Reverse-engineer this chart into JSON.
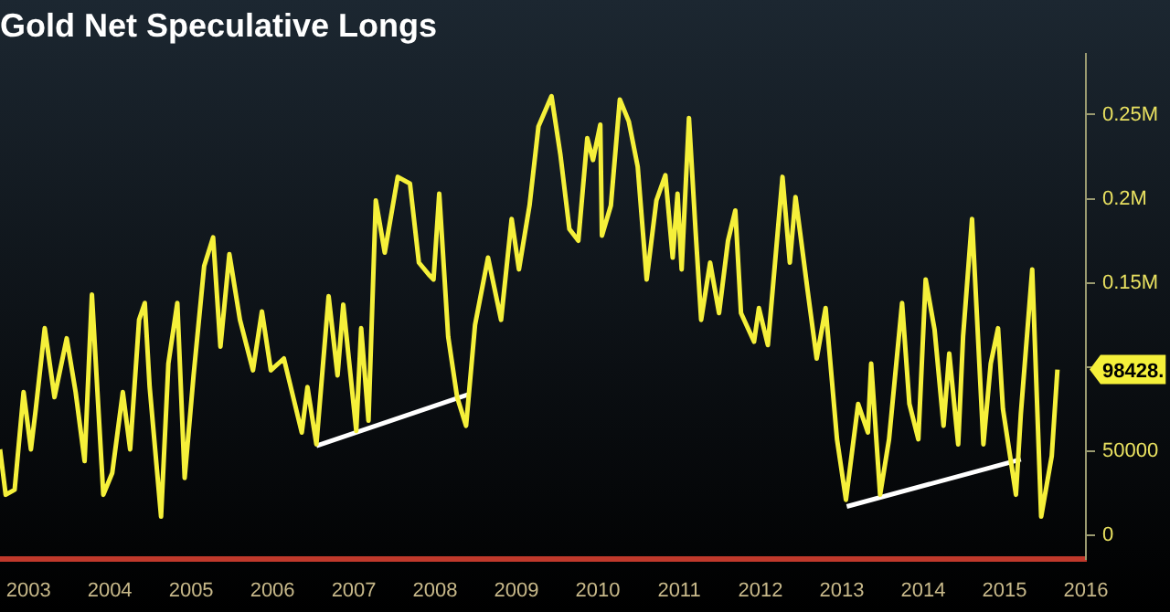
{
  "chart_data": {
    "type": "line",
    "title": "Gold Net Speculative Longs",
    "xlim": [
      2003.15,
      2016.5
    ],
    "ylim": [
      -14000,
      286000
    ],
    "xticks": [
      {
        "value": 2003.5,
        "label": "2003"
      },
      {
        "value": 2004.5,
        "label": "2004"
      },
      {
        "value": 2005.5,
        "label": "2005"
      },
      {
        "value": 2006.5,
        "label": "2006"
      },
      {
        "value": 2007.5,
        "label": "2007"
      },
      {
        "value": 2008.5,
        "label": "2008"
      },
      {
        "value": 2009.5,
        "label": "2009"
      },
      {
        "value": 2010.5,
        "label": "2010"
      },
      {
        "value": 2011.5,
        "label": "2011"
      },
      {
        "value": 2012.5,
        "label": "2012"
      },
      {
        "value": 2013.5,
        "label": "2013"
      },
      {
        "value": 2014.5,
        "label": "2014"
      },
      {
        "value": 2015.5,
        "label": "2015"
      },
      {
        "value": 2016.5,
        "label": "2016"
      }
    ],
    "yticks": [
      0,
      50000,
      {
        "value": 100000,
        "label": null
      },
      {
        "value": 150000,
        "label": "0.15M"
      },
      {
        "value": 200000,
        "label": "0.2M"
      },
      {
        "value": 250000,
        "label": "0.25M"
      }
    ],
    "legend": false,
    "marker": "none",
    "line_style": "solid",
    "series": [
      {
        "color": "#f5f03a",
        "x": [
          2003.15,
          2003.22,
          2003.33,
          2003.44,
          2003.53,
          2003.59,
          2003.7,
          2003.82,
          2003.97,
          2004.08,
          2004.19,
          2004.28,
          2004.42,
          2004.53,
          2004.66,
          2004.75,
          2004.86,
          2004.93,
          2004.99,
          2005.13,
          2005.22,
          2005.33,
          2005.42,
          2005.53,
          2005.66,
          2005.77,
          2005.86,
          2005.97,
          2006.1,
          2006.26,
          2006.37,
          2006.48,
          2006.64,
          2006.86,
          2006.93,
          2007.04,
          2007.19,
          2007.3,
          2007.37,
          2007.53,
          2007.59,
          2007.68,
          2007.77,
          2007.88,
          2008.04,
          2008.19,
          2008.3,
          2008.42,
          2008.48,
          2008.55,
          2008.66,
          2008.77,
          2008.88,
          2008.99,
          2009.15,
          2009.31,
          2009.44,
          2009.53,
          2009.66,
          2009.77,
          2009.93,
          2010.04,
          2010.15,
          2010.26,
          2010.37,
          2010.44,
          2010.53,
          2010.55,
          2010.66,
          2010.77,
          2010.88,
          2010.99,
          2011.1,
          2011.22,
          2011.33,
          2011.42,
          2011.48,
          2011.53,
          2011.62,
          2011.7,
          2011.77,
          2011.88,
          2011.99,
          2012.1,
          2012.19,
          2012.26,
          2012.42,
          2012.48,
          2012.59,
          2012.77,
          2012.86,
          2012.93,
          2013.08,
          2013.19,
          2013.3,
          2013.44,
          2013.55,
          2013.7,
          2013.82,
          2013.86,
          2013.97,
          2014.08,
          2014.24,
          2014.33,
          2014.44,
          2014.53,
          2014.64,
          2014.75,
          2014.82,
          2014.93,
          2014.99,
          2015.1,
          2015.24,
          2015.33,
          2015.42,
          2015.48,
          2015.64,
          2015.7,
          2015.84,
          2015.95,
          2016.08,
          2016.15
        ],
        "values": [
          51000,
          24000,
          27000,
          85000,
          51000,
          75000,
          123000,
          82000,
          117000,
          85000,
          44000,
          143000,
          24000,
          37000,
          85000,
          51000,
          128000,
          138000,
          88000,
          11000,
          102000,
          138000,
          34000,
          95000,
          160000,
          177000,
          112000,
          167000,
          128000,
          98000,
          133000,
          98000,
          105000,
          61000,
          88000,
          54000,
          142000,
          95000,
          137000,
          62000,
          123000,
          68000,
          199000,
          168000,
          213000,
          209000,
          162000,
          155000,
          152000,
          203000,
          118000,
          82000,
          65000,
          125000,
          165000,
          128000,
          188000,
          158000,
          196000,
          243000,
          261000,
          226000,
          182000,
          175000,
          236000,
          223000,
          244000,
          178000,
          196000,
          259000,
          246000,
          219000,
          152000,
          199000,
          214000,
          165000,
          203000,
          158000,
          248000,
          182000,
          128000,
          162000,
          132000,
          175000,
          193000,
          132000,
          115000,
          135000,
          113000,
          213000,
          162000,
          201000,
          145000,
          105000,
          135000,
          57000,
          21000,
          78000,
          61000,
          102000,
          24000,
          57000,
          138000,
          78000,
          57000,
          152000,
          122000,
          65000,
          108000,
          54000,
          118000,
          188000,
          54000,
          102000,
          123000,
          75000,
          24000,
          72000,
          158000,
          11000,
          47000,
          98428
        ]
      },
      {
        "color": "#ffffff",
        "x": [
          2007.04,
          2008.93
        ],
        "values": [
          53000,
          84000
        ]
      },
      {
        "color": "#ffffff",
        "x": [
          2013.56,
          2015.7
        ],
        "values": [
          17000,
          45000
        ]
      }
    ],
    "annotations": [
      {
        "text": "98428.",
        "x": 2016.15,
        "y": 98428
      }
    ]
  }
}
